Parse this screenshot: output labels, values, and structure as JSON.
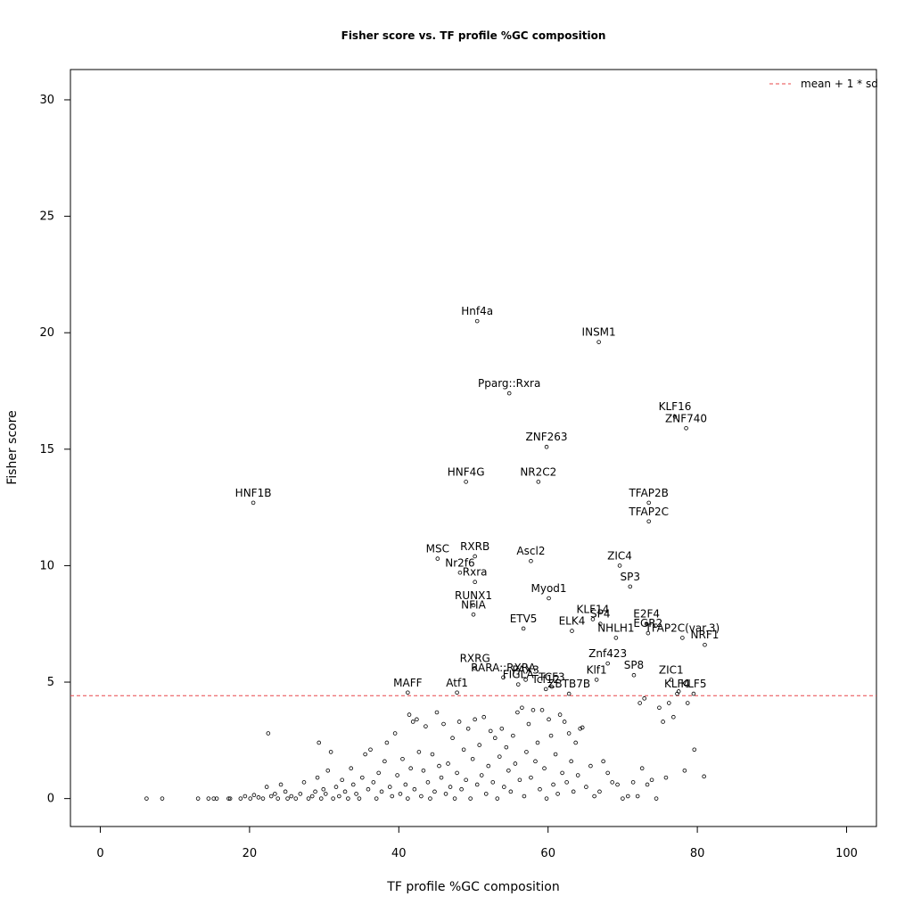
{
  "chart_data": {
    "type": "scatter",
    "title": "Fisher score vs. TF profile %GC composition",
    "xlabel": "TF profile %GC composition",
    "ylabel": "Fisher score",
    "xlim": [
      -4,
      104
    ],
    "ylim": [
      -1.2,
      31.3
    ],
    "xticks": [
      0,
      20,
      40,
      60,
      80,
      100
    ],
    "yticks": [
      0,
      5,
      10,
      15,
      20,
      25,
      30
    ],
    "grid": false,
    "legend": {
      "position": "top-right",
      "entries": [
        {
          "label": "mean + 1 * sd",
          "color": "#e8474a",
          "style": "dashed"
        }
      ]
    },
    "threshold_line": {
      "y": 4.42,
      "color": "#e8474a"
    },
    "labeled_points": [
      {
        "label": "Hnf4a",
        "x": 50.5,
        "y": 20.5
      },
      {
        "label": "INSM1",
        "x": 66.8,
        "y": 19.6
      },
      {
        "label": "Pparg::Rxra",
        "x": 54.8,
        "y": 17.4
      },
      {
        "label": "KLF16",
        "x": 77.0,
        "y": 16.4
      },
      {
        "label": "ZNF740",
        "x": 78.5,
        "y": 15.9
      },
      {
        "label": "ZNF263",
        "x": 59.8,
        "y": 15.1
      },
      {
        "label": "HNF4G",
        "x": 49.0,
        "y": 13.6
      },
      {
        "label": "NR2C2",
        "x": 58.7,
        "y": 13.6
      },
      {
        "label": "HNF1B",
        "x": 20.5,
        "y": 12.7
      },
      {
        "label": "TFAP2B",
        "x": 73.5,
        "y": 12.7
      },
      {
        "label": "TFAP2C",
        "x": 73.5,
        "y": 11.9
      },
      {
        "label": "MSC",
        "x": 45.2,
        "y": 10.3
      },
      {
        "label": "RXRB",
        "x": 50.2,
        "y": 10.4
      },
      {
        "label": "Ascl2",
        "x": 57.7,
        "y": 10.2
      },
      {
        "label": "ZIC4",
        "x": 69.6,
        "y": 10.0
      },
      {
        "label": "Nr2f6",
        "x": 48.2,
        "y": 9.7
      },
      {
        "label": "Rxra",
        "x": 50.2,
        "y": 9.3
      },
      {
        "label": "SP3",
        "x": 71.0,
        "y": 9.1
      },
      {
        "label": "Myod1",
        "x": 60.1,
        "y": 8.6
      },
      {
        "label": "RUNX1",
        "x": 50.0,
        "y": 8.3
      },
      {
        "label": "NFIA",
        "x": 50.0,
        "y": 7.9
      },
      {
        "label": "KLF14",
        "x": 66.0,
        "y": 7.7
      },
      {
        "label": "SP4",
        "x": 67.0,
        "y": 7.5
      },
      {
        "label": "E2F4",
        "x": 73.2,
        "y": 7.5
      },
      {
        "label": "ETV5",
        "x": 56.7,
        "y": 7.3
      },
      {
        "label": "ELK4",
        "x": 63.2,
        "y": 7.2
      },
      {
        "label": "EGR2",
        "x": 73.4,
        "y": 7.1
      },
      {
        "label": "NHLH1",
        "x": 69.1,
        "y": 6.9
      },
      {
        "label": "TFAP2C(var.3)",
        "x": 78.0,
        "y": 6.9
      },
      {
        "label": "NRF1",
        "x": 81.0,
        "y": 6.6
      },
      {
        "label": "Znf423",
        "x": 68.0,
        "y": 5.8
      },
      {
        "label": "RXRG",
        "x": 50.2,
        "y": 5.6
      },
      {
        "label": "SP8",
        "x": 71.5,
        "y": 5.3
      },
      {
        "label": "RARA::RXRA",
        "x": 54.0,
        "y": 5.2
      },
      {
        "label": "PAX3",
        "x": 57.0,
        "y": 5.1
      },
      {
        "label": "Klf1",
        "x": 66.5,
        "y": 5.1
      },
      {
        "label": "ZIC1",
        "x": 76.5,
        "y": 5.1
      },
      {
        "label": "FIGLA",
        "x": 56.0,
        "y": 4.9
      },
      {
        "label": "TCF3",
        "x": 60.5,
        "y": 4.8
      },
      {
        "label": "Tcf12",
        "x": 59.7,
        "y": 4.7
      },
      {
        "label": "ZBTB7B",
        "x": 62.8,
        "y": 4.5
      },
      {
        "label": "MAFF",
        "x": 41.2,
        "y": 4.55
      },
      {
        "label": "Atf1",
        "x": 47.8,
        "y": 4.55
      },
      {
        "label": "KLF4",
        "x": 77.3,
        "y": 4.5
      },
      {
        "label": "KLF5",
        "x": 79.5,
        "y": 4.5
      }
    ],
    "other_points": [
      [
        6.2,
        0
      ],
      [
        8.3,
        0
      ],
      [
        13.1,
        0
      ],
      [
        14.5,
        0
      ],
      [
        15.2,
        0
      ],
      [
        15.6,
        0
      ],
      [
        17.2,
        0
      ],
      [
        17.4,
        0
      ],
      [
        18.8,
        0
      ],
      [
        19.4,
        0.1
      ],
      [
        20.1,
        0
      ],
      [
        20.6,
        0.15
      ],
      [
        21.2,
        0.05
      ],
      [
        21.8,
        0
      ],
      [
        22.3,
        0.5
      ],
      [
        22.5,
        2.8
      ],
      [
        22.9,
        0.1
      ],
      [
        23.4,
        0.2
      ],
      [
        23.8,
        0
      ],
      [
        24.2,
        0.6
      ],
      [
        24.8,
        0.3
      ],
      [
        25.1,
        0
      ],
      [
        25.6,
        0.1
      ],
      [
        26.2,
        0
      ],
      [
        26.8,
        0.2
      ],
      [
        27.3,
        0.7
      ],
      [
        27.9,
        0
      ],
      [
        28.4,
        0.1
      ],
      [
        28.8,
        0.3
      ],
      [
        29.1,
        0.9
      ],
      [
        29.3,
        2.4
      ],
      [
        29.6,
        0
      ],
      [
        29.9,
        0.4
      ],
      [
        30.2,
        0.2
      ],
      [
        30.5,
        1.2
      ],
      [
        30.9,
        2.0
      ],
      [
        31.2,
        0
      ],
      [
        31.6,
        0.5
      ],
      [
        32.0,
        0.1
      ],
      [
        32.4,
        0.8
      ],
      [
        32.8,
        0.3
      ],
      [
        33.2,
        0
      ],
      [
        33.6,
        1.3
      ],
      [
        33.9,
        0.6
      ],
      [
        34.3,
        0.2
      ],
      [
        34.7,
        0
      ],
      [
        35.1,
        0.9
      ],
      [
        35.5,
        1.9
      ],
      [
        35.9,
        0.4
      ],
      [
        36.2,
        2.1
      ],
      [
        36.6,
        0.7
      ],
      [
        37.0,
        0
      ],
      [
        37.3,
        1.1
      ],
      [
        37.7,
        0.3
      ],
      [
        38.1,
        1.6
      ],
      [
        38.4,
        2.4
      ],
      [
        38.8,
        0.5
      ],
      [
        39.1,
        0.1
      ],
      [
        39.5,
        2.8
      ],
      [
        39.8,
        1.0
      ],
      [
        40.2,
        0.2
      ],
      [
        40.5,
        1.7
      ],
      [
        40.9,
        0.6
      ],
      [
        41.2,
        0
      ],
      [
        41.4,
        3.6
      ],
      [
        41.6,
        1.3
      ],
      [
        41.9,
        3.3
      ],
      [
        42.1,
        0.4
      ],
      [
        42.4,
        3.4
      ],
      [
        42.7,
        2.0
      ],
      [
        43.0,
        0.1
      ],
      [
        43.3,
        1.2
      ],
      [
        43.6,
        3.1
      ],
      [
        43.9,
        0.7
      ],
      [
        44.2,
        0
      ],
      [
        44.5,
        1.9
      ],
      [
        44.8,
        0.3
      ],
      [
        45.1,
        3.7
      ],
      [
        45.4,
        1.4
      ],
      [
        45.7,
        0.9
      ],
      [
        46.0,
        3.2
      ],
      [
        46.3,
        0.2
      ],
      [
        46.6,
        1.5
      ],
      [
        46.9,
        0.5
      ],
      [
        47.2,
        2.6
      ],
      [
        47.5,
        0
      ],
      [
        47.8,
        1.1
      ],
      [
        48.1,
        3.3
      ],
      [
        48.4,
        0.4
      ],
      [
        48.7,
        2.1
      ],
      [
        49.0,
        0.8
      ],
      [
        49.3,
        3.0
      ],
      [
        49.6,
        0
      ],
      [
        49.9,
        1.7
      ],
      [
        50.2,
        3.4
      ],
      [
        50.5,
        0.6
      ],
      [
        50.8,
        2.3
      ],
      [
        51.1,
        1.0
      ],
      [
        51.4,
        3.5
      ],
      [
        51.7,
        0.2
      ],
      [
        52.0,
        1.4
      ],
      [
        52.3,
        2.9
      ],
      [
        52.6,
        0.7
      ],
      [
        52.9,
        2.6
      ],
      [
        53.2,
        0
      ],
      [
        53.5,
        1.8
      ],
      [
        53.8,
        3.0
      ],
      [
        54.1,
        0.5
      ],
      [
        54.4,
        2.2
      ],
      [
        54.7,
        1.2
      ],
      [
        55.0,
        0.3
      ],
      [
        55.3,
        2.7
      ],
      [
        55.6,
        1.5
      ],
      [
        55.9,
        3.7
      ],
      [
        56.2,
        0.8
      ],
      [
        56.5,
        3.9
      ],
      [
        56.8,
        0.1
      ],
      [
        57.1,
        2.0
      ],
      [
        57.4,
        3.2
      ],
      [
        57.7,
        0.9
      ],
      [
        58.0,
        3.8
      ],
      [
        58.3,
        1.6
      ],
      [
        58.6,
        2.4
      ],
      [
        58.9,
        0.4
      ],
      [
        59.2,
        3.8
      ],
      [
        59.5,
        1.3
      ],
      [
        59.8,
        0
      ],
      [
        60.1,
        3.4
      ],
      [
        60.4,
        2.7
      ],
      [
        60.7,
        0.6
      ],
      [
        61.0,
        1.9
      ],
      [
        61.3,
        0.2
      ],
      [
        61.6,
        3.6
      ],
      [
        61.9,
        1.1
      ],
      [
        62.2,
        3.3
      ],
      [
        62.5,
        0.7
      ],
      [
        62.8,
        2.8
      ],
      [
        63.1,
        1.6
      ],
      [
        63.4,
        0.3
      ],
      [
        63.7,
        2.4
      ],
      [
        64.0,
        1.0
      ],
      [
        64.3,
        3.0
      ],
      [
        64.6,
        3.05
      ],
      [
        65.1,
        0.5
      ],
      [
        65.7,
        1.4
      ],
      [
        66.2,
        0.1
      ],
      [
        66.9,
        0.3
      ],
      [
        67.4,
        1.6
      ],
      [
        68.0,
        1.1
      ],
      [
        68.6,
        0.7
      ],
      [
        69.3,
        0.6
      ],
      [
        70.0,
        0
      ],
      [
        70.7,
        0.1
      ],
      [
        71.4,
        0.7
      ],
      [
        72.0,
        0.1
      ],
      [
        72.3,
        4.1
      ],
      [
        72.6,
        1.3
      ],
      [
        72.9,
        4.3
      ],
      [
        73.3,
        0.6
      ],
      [
        73.9,
        0.8
      ],
      [
        74.5,
        0
      ],
      [
        74.9,
        3.9
      ],
      [
        75.4,
        3.3
      ],
      [
        75.8,
        0.9
      ],
      [
        76.2,
        4.1
      ],
      [
        76.8,
        3.5
      ],
      [
        77.5,
        4.6
      ],
      [
        78.3,
        1.2
      ],
      [
        78.7,
        4.1
      ],
      [
        79.6,
        2.1
      ],
      [
        80.9,
        0.95
      ]
    ]
  }
}
